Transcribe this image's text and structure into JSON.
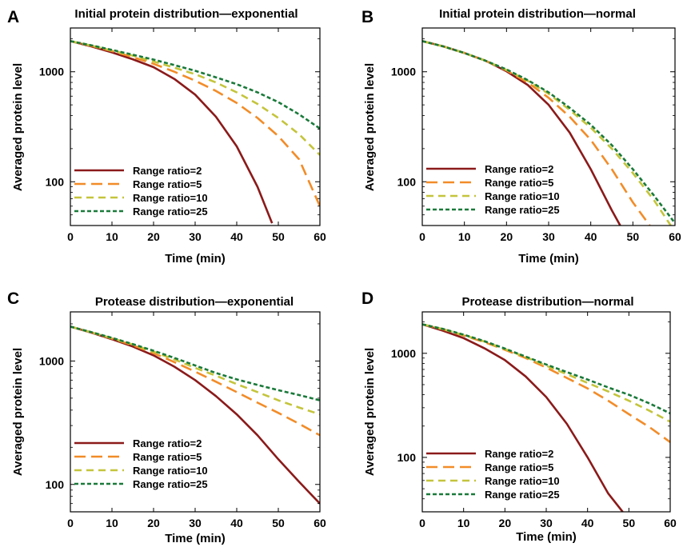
{
  "chart_data": [
    {
      "type": "line",
      "panel_letter": "A",
      "title": "Initial protein distribution—exponential",
      "xlabel": "Time (min)",
      "ylabel": "Averaged protein level",
      "x_ticks": [
        0,
        10,
        20,
        30,
        40,
        50,
        60
      ],
      "y_ticks": [
        100,
        1000
      ],
      "y_tick_labels": [
        "100",
        "1000"
      ],
      "xlim": [
        0,
        60
      ],
      "ylim": [
        40,
        2500
      ],
      "y_scale": "log",
      "legend_position": "lower-left",
      "series": [
        {
          "name": "Range ratio=2",
          "color": "#8b1a1a",
          "dash": "solid",
          "x": [
            0,
            5,
            10,
            15,
            20,
            25,
            30,
            35,
            40,
            45,
            48.5
          ],
          "y": [
            1900,
            1700,
            1500,
            1300,
            1100,
            860,
            620,
            390,
            210,
            90,
            42
          ]
        },
        {
          "name": "Range ratio=5",
          "color": "#f28c28",
          "dash": "long-dash",
          "x": [
            0,
            5,
            10,
            15,
            20,
            25,
            30,
            35,
            40,
            45,
            50,
            55,
            60
          ],
          "y": [
            1900,
            1720,
            1540,
            1360,
            1180,
            1000,
            830,
            670,
            520,
            380,
            260,
            160,
            60
          ]
        },
        {
          "name": "Range ratio=10",
          "color": "#c4c43c",
          "dash": "dash",
          "x": [
            0,
            5,
            10,
            15,
            20,
            25,
            30,
            35,
            40,
            45,
            50,
            55,
            60
          ],
          "y": [
            1900,
            1730,
            1560,
            1400,
            1240,
            1090,
            950,
            800,
            650,
            510,
            380,
            270,
            175
          ]
        },
        {
          "name": "Range ratio=25",
          "color": "#1a7a3a",
          "dash": "short-dash",
          "x": [
            0,
            5,
            10,
            15,
            20,
            25,
            30,
            35,
            40,
            45,
            50,
            55,
            60
          ],
          "y": [
            1900,
            1740,
            1580,
            1430,
            1290,
            1150,
            1020,
            890,
            770,
            650,
            530,
            410,
            305
          ]
        }
      ]
    },
    {
      "type": "line",
      "panel_letter": "B",
      "title": "Initial protein distribution—normal",
      "xlabel": "Time (min)",
      "ylabel": "Averaged protein level",
      "x_ticks": [
        0,
        10,
        20,
        30,
        40,
        50,
        60
      ],
      "y_ticks": [
        100,
        1000
      ],
      "y_tick_labels": [
        "100",
        "1000"
      ],
      "xlim": [
        0,
        60
      ],
      "ylim": [
        40,
        2500
      ],
      "y_scale": "log",
      "legend_position": "lower-left",
      "series": [
        {
          "name": "Range ratio=2",
          "color": "#8b1a1a",
          "dash": "solid",
          "x": [
            0,
            5,
            10,
            15,
            20,
            25,
            30,
            35,
            40,
            45,
            47
          ],
          "y": [
            1900,
            1700,
            1480,
            1260,
            1010,
            760,
            500,
            280,
            130,
            55,
            40
          ]
        },
        {
          "name": "Range ratio=5",
          "color": "#f28c28",
          "dash": "long-dash",
          "x": [
            0,
            5,
            10,
            15,
            20,
            25,
            30,
            35,
            40,
            45,
            50,
            54
          ],
          "y": [
            1900,
            1700,
            1480,
            1260,
            1030,
            800,
            580,
            390,
            240,
            130,
            65,
            40
          ]
        },
        {
          "name": "Range ratio=10",
          "color": "#c4c43c",
          "dash": "dash",
          "x": [
            0,
            5,
            10,
            15,
            20,
            25,
            30,
            35,
            40,
            45,
            50,
            55,
            59
          ],
          "y": [
            1900,
            1700,
            1480,
            1260,
            1040,
            830,
            630,
            450,
            310,
            200,
            120,
            68,
            40
          ]
        },
        {
          "name": "Range ratio=25",
          "color": "#1a7a3a",
          "dash": "short-dash",
          "x": [
            0,
            5,
            10,
            15,
            20,
            25,
            30,
            35,
            40,
            45,
            50,
            55,
            60
          ],
          "y": [
            1900,
            1700,
            1480,
            1260,
            1050,
            840,
            650,
            470,
            330,
            215,
            130,
            75,
            42
          ]
        }
      ]
    },
    {
      "type": "line",
      "panel_letter": "C",
      "title": "Protease distribution—exponential",
      "xlabel": "Time (min)",
      "ylabel": "Averaged protein level",
      "x_ticks": [
        0,
        10,
        20,
        30,
        40,
        50,
        60
      ],
      "y_ticks": [
        100,
        1000
      ],
      "y_tick_labels": [
        "100",
        "1000"
      ],
      "xlim": [
        0,
        60
      ],
      "ylim": [
        60,
        2500
      ],
      "y_scale": "log",
      "legend_position": "lower-left",
      "series": [
        {
          "name": "Range ratio=2",
          "color": "#8b1a1a",
          "dash": "solid",
          "x": [
            0,
            5,
            10,
            15,
            20,
            25,
            30,
            35,
            40,
            45,
            50,
            55,
            60
          ],
          "y": [
            1900,
            1700,
            1500,
            1310,
            1110,
            900,
            700,
            520,
            370,
            250,
            160,
            105,
            70
          ]
        },
        {
          "name": "Range ratio=5",
          "color": "#f28c28",
          "dash": "long-dash",
          "x": [
            0,
            5,
            10,
            15,
            20,
            25,
            30,
            35,
            40,
            45,
            50,
            55,
            60
          ],
          "y": [
            1900,
            1710,
            1520,
            1340,
            1160,
            980,
            820,
            680,
            560,
            460,
            380,
            310,
            250
          ]
        },
        {
          "name": "Range ratio=10",
          "color": "#c4c43c",
          "dash": "dash",
          "x": [
            0,
            5,
            10,
            15,
            20,
            25,
            30,
            35,
            40,
            45,
            50,
            55,
            60
          ],
          "y": [
            1900,
            1710,
            1530,
            1360,
            1190,
            1030,
            880,
            760,
            650,
            560,
            480,
            420,
            370
          ]
        },
        {
          "name": "Range ratio=25",
          "color": "#1a7a3a",
          "dash": "short-dash",
          "x": [
            0,
            5,
            10,
            15,
            20,
            25,
            30,
            35,
            40,
            45,
            50,
            55,
            60
          ],
          "y": [
            1900,
            1715,
            1540,
            1370,
            1210,
            1060,
            920,
            800,
            710,
            640,
            580,
            530,
            480
          ]
        }
      ]
    },
    {
      "type": "line",
      "panel_letter": "D",
      "title": "Protease distribution—normal",
      "xlabel": "Time (min)",
      "ylabel": "Averaged protein level",
      "x_ticks": [
        0,
        10,
        20,
        30,
        40,
        50,
        60
      ],
      "y_ticks": [
        100,
        1000
      ],
      "y_tick_labels": [
        "100",
        "1000"
      ],
      "xlim": [
        0,
        60
      ],
      "ylim": [
        30,
        2500
      ],
      "y_scale": "log",
      "legend_position": "lower-left",
      "series": [
        {
          "name": "Range ratio=2",
          "color": "#8b1a1a",
          "dash": "solid",
          "x": [
            0,
            5,
            10,
            15,
            20,
            25,
            30,
            35,
            40,
            45,
            48.5
          ],
          "y": [
            1900,
            1650,
            1400,
            1120,
            860,
            600,
            380,
            210,
            100,
            45,
            30
          ]
        },
        {
          "name": "Range ratio=5",
          "color": "#f28c28",
          "dash": "long-dash",
          "x": [
            0,
            5,
            10,
            15,
            20,
            25,
            30,
            35,
            40,
            45,
            50,
            55,
            60
          ],
          "y": [
            1900,
            1700,
            1480,
            1280,
            1080,
            900,
            730,
            580,
            460,
            350,
            260,
            195,
            140
          ]
        },
        {
          "name": "Range ratio=10",
          "color": "#c4c43c",
          "dash": "dash",
          "x": [
            0,
            5,
            10,
            15,
            20,
            25,
            30,
            35,
            40,
            45,
            50,
            55,
            60
          ],
          "y": [
            1900,
            1710,
            1500,
            1300,
            1100,
            920,
            760,
            630,
            520,
            430,
            350,
            280,
            220
          ]
        },
        {
          "name": "Range ratio=25",
          "color": "#1a7a3a",
          "dash": "short-dash",
          "x": [
            0,
            5,
            10,
            15,
            20,
            25,
            30,
            35,
            40,
            45,
            50,
            55,
            60
          ],
          "y": [
            1900,
            1715,
            1510,
            1310,
            1110,
            930,
            780,
            660,
            560,
            470,
            400,
            330,
            265
          ]
        }
      ]
    }
  ]
}
